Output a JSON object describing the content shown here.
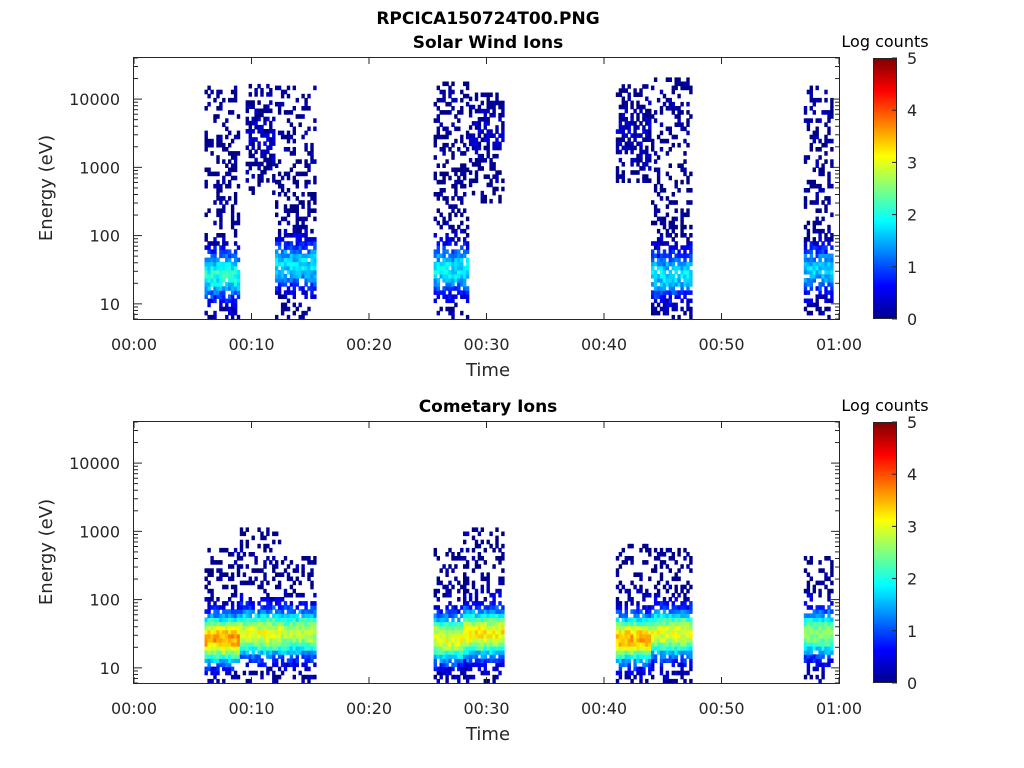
{
  "figure_title": "RPCICA150724T00.PNG",
  "chart_data": [
    {
      "type": "heatmap",
      "title": "Solar Wind Ions",
      "xlabel": "Time",
      "ylabel": "Energy (eV)",
      "x_ticks": [
        "00:00",
        "00:10",
        "00:20",
        "00:30",
        "00:40",
        "00:50",
        "01:00"
      ],
      "xlim_minutes": [
        0,
        60
      ],
      "y_ticks": [
        "10",
        "100",
        "1000",
        "10000"
      ],
      "y_tick_values": [
        10,
        100,
        1000,
        10000
      ],
      "y_scale": "log",
      "ylim": [
        6,
        40000
      ],
      "colorbar": {
        "label": "Log counts",
        "ticks": [
          "0",
          "1",
          "2",
          "3",
          "4",
          "5"
        ],
        "range": [
          0,
          5
        ],
        "colormap": "jet"
      },
      "bursts": [
        {
          "t_start_min": 6.0,
          "t_end_min": 9.0,
          "e_min": 6,
          "e_max": 15000,
          "peak_energy": 25,
          "peak_log_counts": 2.0
        },
        {
          "t_start_min": 9.5,
          "t_end_min": 12.0,
          "e_min": 400,
          "e_max": 15000,
          "peak_energy": 3000,
          "peak_log_counts": 0.3
        },
        {
          "t_start_min": 12.0,
          "t_end_min": 15.5,
          "e_min": 6,
          "e_max": 15000,
          "peak_energy": 35,
          "peak_log_counts": 1.7
        },
        {
          "t_start_min": 25.5,
          "t_end_min": 28.5,
          "e_min": 6,
          "e_max": 20000,
          "peak_energy": 30,
          "peak_log_counts": 1.8
        },
        {
          "t_start_min": 28.5,
          "t_end_min": 31.5,
          "e_min": 300,
          "e_max": 12000,
          "peak_energy": 3000,
          "peak_log_counts": 0.3
        },
        {
          "t_start_min": 41.0,
          "t_end_min": 44.0,
          "e_min": 600,
          "e_max": 15000,
          "peak_energy": 3000,
          "peak_log_counts": 0.3
        },
        {
          "t_start_min": 44.0,
          "t_end_min": 47.5,
          "e_min": 6,
          "e_max": 20000,
          "peak_energy": 25,
          "peak_log_counts": 1.7
        },
        {
          "t_start_min": 57.0,
          "t_end_min": 59.5,
          "e_min": 6,
          "e_max": 15000,
          "peak_energy": 30,
          "peak_log_counts": 1.6
        }
      ]
    },
    {
      "type": "heatmap",
      "title": "Cometary Ions",
      "xlabel": "Time",
      "ylabel": "Energy (eV)",
      "x_ticks": [
        "00:00",
        "00:10",
        "00:20",
        "00:30",
        "00:40",
        "00:50",
        "01:00"
      ],
      "xlim_minutes": [
        0,
        60
      ],
      "y_ticks": [
        "10",
        "100",
        "1000",
        "10000"
      ],
      "y_tick_values": [
        10,
        100,
        1000,
        10000
      ],
      "y_scale": "log",
      "ylim": [
        6,
        40000
      ],
      "colorbar": {
        "label": "Log counts",
        "ticks": [
          "0",
          "1",
          "2",
          "3",
          "4",
          "5"
        ],
        "range": [
          0,
          5
        ],
        "colormap": "jet"
      },
      "bursts": [
        {
          "t_start_min": 6.0,
          "t_end_min": 9.0,
          "e_min": 6,
          "e_max": 500,
          "peak_energy": 25,
          "peak_log_counts": 3.6
        },
        {
          "t_start_min": 9.0,
          "t_end_min": 12.5,
          "e_min": 6,
          "e_max": 1000,
          "peak_energy": 30,
          "peak_log_counts": 3.0
        },
        {
          "t_start_min": 12.5,
          "t_end_min": 15.5,
          "e_min": 6,
          "e_max": 400,
          "peak_energy": 30,
          "peak_log_counts": 2.8
        },
        {
          "t_start_min": 25.5,
          "t_end_min": 28.5,
          "e_min": 6,
          "e_max": 500,
          "peak_energy": 25,
          "peak_log_counts": 3.0
        },
        {
          "t_start_min": 28.0,
          "t_end_min": 31.5,
          "e_min": 6,
          "e_max": 1000,
          "peak_energy": 30,
          "peak_log_counts": 3.2
        },
        {
          "t_start_min": 41.0,
          "t_end_min": 44.0,
          "e_min": 6,
          "e_max": 600,
          "peak_energy": 25,
          "peak_log_counts": 3.5
        },
        {
          "t_start_min": 44.0,
          "t_end_min": 47.5,
          "e_min": 6,
          "e_max": 500,
          "peak_energy": 30,
          "peak_log_counts": 3.0
        },
        {
          "t_start_min": 57.0,
          "t_end_min": 59.5,
          "e_min": 6,
          "e_max": 400,
          "peak_energy": 30,
          "peak_log_counts": 2.6
        }
      ]
    }
  ]
}
